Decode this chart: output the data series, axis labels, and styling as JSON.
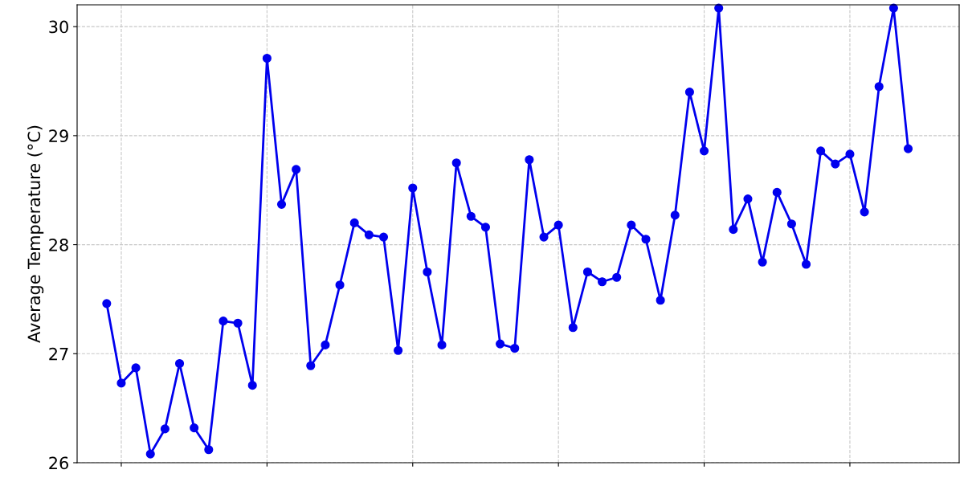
{
  "chart_data": {
    "type": "line",
    "ylabel": "Average Temperature (°C)",
    "categories": [
      null,
      null,
      null,
      null,
      null,
      null,
      null,
      null,
      null,
      null,
      null,
      null,
      null,
      null,
      null,
      null,
      null,
      null,
      null,
      null,
      null,
      null,
      null,
      null,
      null,
      null,
      null,
      null,
      null,
      null,
      null,
      null,
      null,
      null,
      null,
      null,
      null,
      null,
      null,
      null,
      null,
      null,
      null,
      null,
      null,
      null,
      null,
      null,
      null,
      null,
      null,
      null,
      null,
      null,
      null,
      null
    ],
    "series": [
      {
        "color": "#0000ee",
        "values": [
          27.46,
          26.73,
          26.87,
          26.08,
          26.31,
          26.91,
          26.32,
          26.12,
          27.3,
          27.28,
          26.71,
          29.71,
          28.37,
          28.69,
          26.89,
          27.08,
          27.63,
          28.2,
          28.09,
          28.07,
          27.03,
          28.52,
          27.75,
          27.08,
          28.75,
          28.26,
          28.16,
          27.09,
          27.05,
          28.78,
          28.07,
          28.18,
          27.24,
          27.75,
          27.66,
          27.7,
          28.18,
          28.05,
          27.49,
          28.27,
          29.4,
          28.86,
          30.17,
          28.14,
          28.42,
          27.84,
          28.48,
          28.19,
          27.82,
          28.86,
          28.74,
          28.83,
          28.3,
          29.45,
          30.17,
          28.88
        ]
      }
    ],
    "ylim": [
      26,
      30.2
    ],
    "yticks": [
      26,
      27,
      28,
      29,
      30
    ],
    "grid": true,
    "marker": "circle",
    "line_style": "solid",
    "tick_labels": "y"
  }
}
